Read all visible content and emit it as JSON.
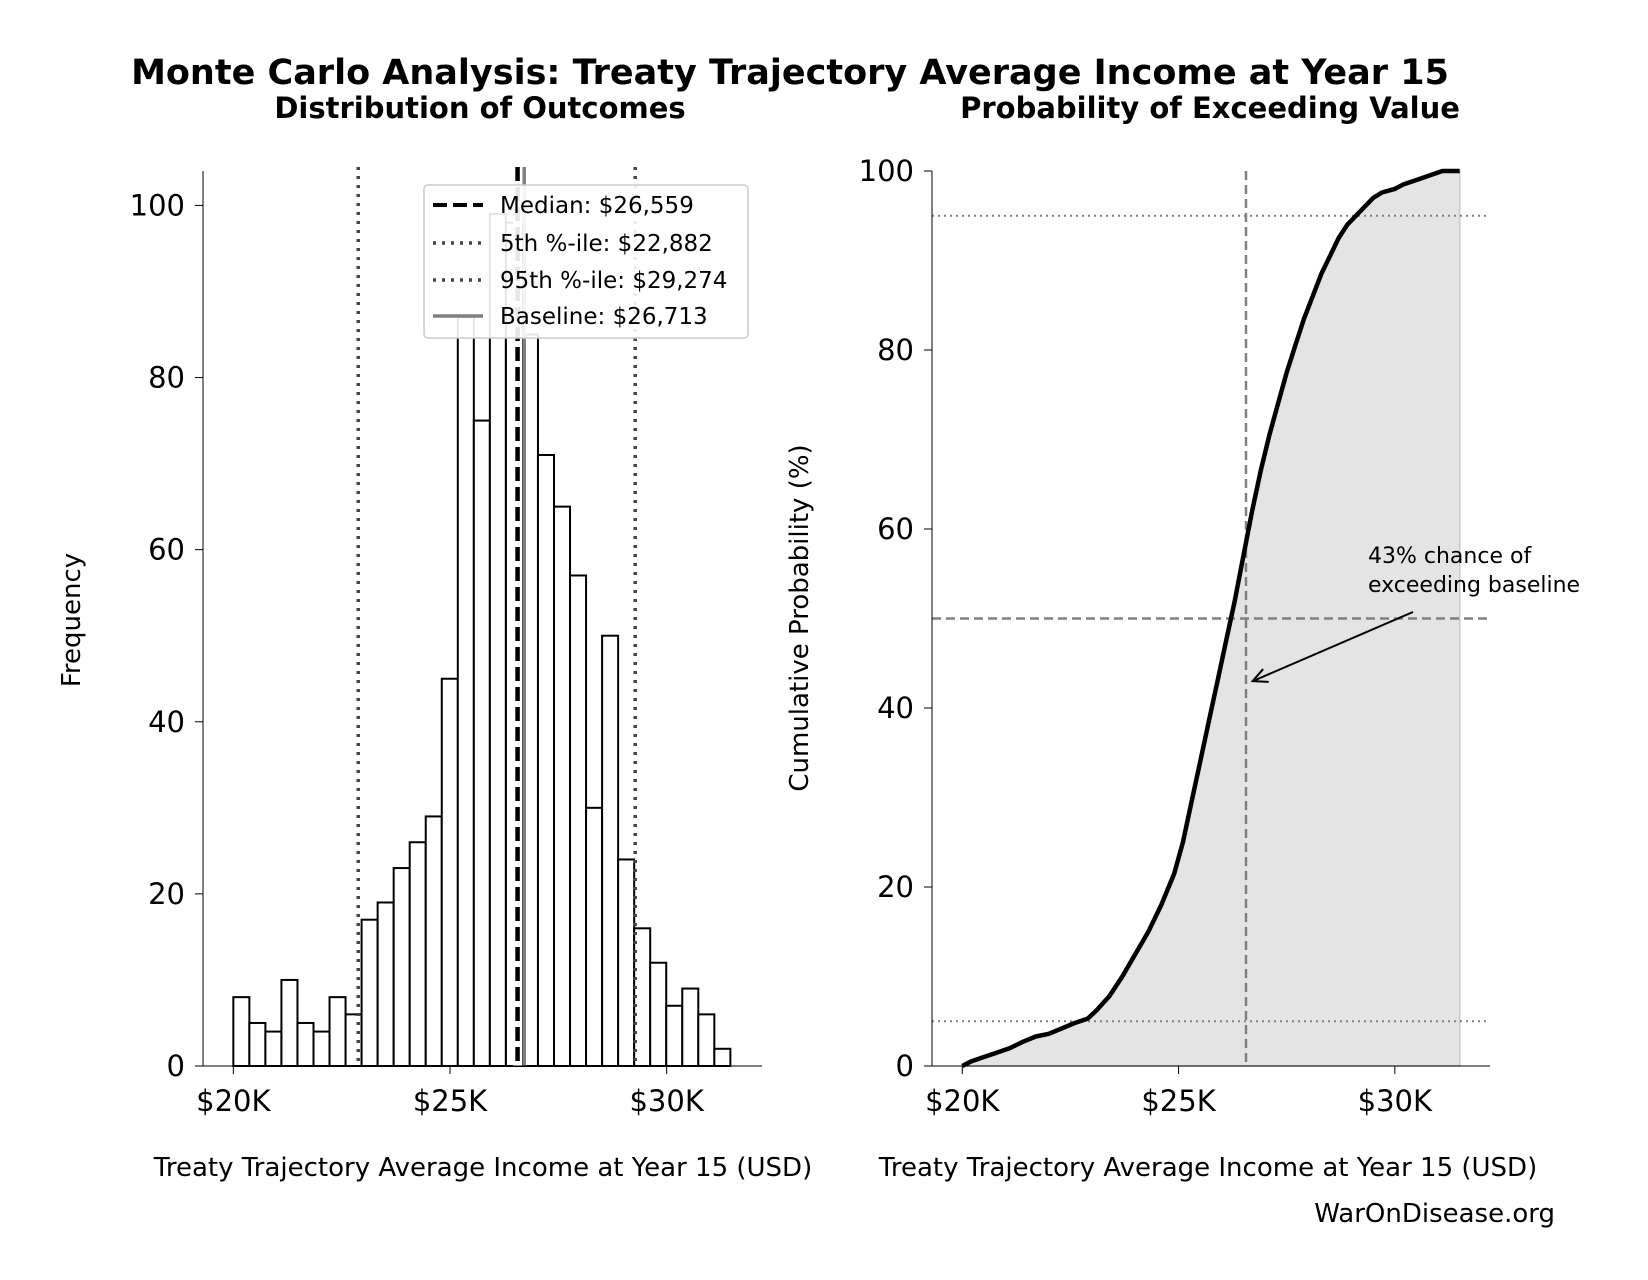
{
  "figure": {
    "title": "Monte Carlo Analysis: Treaty Trajectory Average Income at Year 15",
    "watermark": "WarOnDisease.org"
  },
  "chart_data": [
    {
      "type": "bar",
      "subtitle": "Distribution of Outcomes",
      "xlabel": "Treaty Trajectory Average Income at Year 15 (USD)",
      "ylabel": "Frequency",
      "xlim": [
        19300,
        32200
      ],
      "ylim": [
        0,
        104
      ],
      "xticks": [
        20000,
        25000,
        30000
      ],
      "xtick_labels": [
        "$20K",
        "$25K",
        "$30K"
      ],
      "yticks": [
        0,
        20,
        40,
        60,
        80,
        100
      ],
      "ytick_labels": [
        "0",
        "20",
        "40",
        "60",
        "80",
        "100"
      ],
      "grid": false,
      "legend_position": "top-right",
      "bin_start": 20000,
      "bin_width": 370,
      "counts": [
        8,
        5,
        4,
        10,
        5,
        4,
        8,
        6,
        17,
        19,
        23,
        26,
        29,
        45,
        87,
        75,
        99,
        98,
        85,
        71,
        65,
        57,
        30,
        50,
        24,
        16,
        12,
        7,
        9,
        6,
        2
      ],
      "reference_lines": [
        {
          "label": "Median: $26,559",
          "x": 26559,
          "style": "dashed",
          "color": "#000000"
        },
        {
          "label": "5th %-ile: $22,882",
          "x": 22882,
          "style": "dotted",
          "color": "#444444"
        },
        {
          "label": "95th %-ile: $29,274",
          "x": 29274,
          "style": "dotted",
          "color": "#444444"
        },
        {
          "label": "Baseline: $26,713",
          "x": 26713,
          "style": "solid",
          "color": "#808080"
        }
      ]
    },
    {
      "type": "area",
      "subtitle": "Probability of Exceeding Value",
      "xlabel": "Treaty Trajectory Average Income at Year 15 (USD)",
      "ylabel": "Cumulative Probability (%)",
      "xlim": [
        19300,
        32200
      ],
      "ylim": [
        0,
        100
      ],
      "xticks": [
        20000,
        25000,
        30000
      ],
      "xtick_labels": [
        "$20K",
        "$25K",
        "$30K"
      ],
      "yticks": [
        0,
        20,
        40,
        60,
        80,
        100
      ],
      "ytick_labels": [
        "0",
        "20",
        "40",
        "60",
        "80",
        "100"
      ],
      "grid": false,
      "x": [
        20000,
        20200,
        20500,
        20800,
        21100,
        21400,
        21700,
        22000,
        22300,
        22600,
        22900,
        23100,
        23400,
        23700,
        24000,
        24300,
        24600,
        24900,
        25100,
        25300,
        25500,
        25700,
        25900,
        26100,
        26300,
        26500,
        26700,
        26900,
        27100,
        27300,
        27500,
        27700,
        27900,
        28100,
        28300,
        28500,
        28700,
        28900,
        29100,
        29300,
        29500,
        29700,
        30000,
        30200,
        30500,
        30800,
        31100,
        31500
      ],
      "y": [
        0,
        0.5,
        1.0,
        1.5,
        2.0,
        2.7,
        3.3,
        3.6,
        4.2,
        4.8,
        5.3,
        6.2,
        7.8,
        10.0,
        12.5,
        15.0,
        18.0,
        21.5,
        25.0,
        29.5,
        34.0,
        38.5,
        43.0,
        47.5,
        52.0,
        57.0,
        62.0,
        66.5,
        70.5,
        74.0,
        77.5,
        80.5,
        83.5,
        86.0,
        88.5,
        90.5,
        92.5,
        94.0,
        95.0,
        96.0,
        97.0,
        97.6,
        98.0,
        98.5,
        99.0,
        99.5,
        100.0,
        100.0
      ],
      "hlines": [
        {
          "y": 95,
          "style": "dotted",
          "color": "#808080"
        },
        {
          "y": 50,
          "style": "dashed",
          "color": "#808080"
        },
        {
          "y": 5,
          "style": "dotted",
          "color": "#808080"
        }
      ],
      "vline": {
        "x": 26559,
        "style": "dashed",
        "color": "#808080"
      },
      "annotation": {
        "lines": [
          "43% chance of",
          "exceeding baseline"
        ],
        "arrow_to_x": 26713,
        "arrow_to_y": 43
      }
    }
  ]
}
